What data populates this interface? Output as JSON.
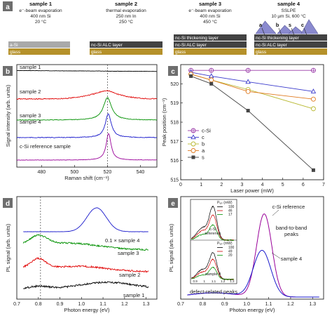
{
  "panel_a": {
    "letter": "a",
    "samples": [
      {
        "title": "sample 1",
        "lines": [
          "e⁻-beam evaporation",
          "400 nm Si",
          "20 °C"
        ],
        "layers": [
          {
            "text": "a-Si",
            "color": "#a9a9a9"
          },
          {
            "text": "glass",
            "color": "#b5912a"
          }
        ]
      },
      {
        "title": "sample 2",
        "lines": [
          "thermal evaporation",
          "250 nm In",
          "250 °C"
        ],
        "layers": [
          {
            "text": "nc-Si ALC layer",
            "color": "#424242"
          },
          {
            "text": "glass",
            "color": "#b5912a"
          }
        ]
      },
      {
        "title": "sample 3",
        "lines": [
          "e⁻-beam evaporation",
          "400 nm Si",
          "450 °C"
        ],
        "layers": [
          {
            "text": "nc-Si thickening layer",
            "color": "#424242"
          },
          {
            "text": "nc-Si ALC layer",
            "color": "#424242"
          },
          {
            "text": "glass",
            "color": "#b5912a"
          }
        ]
      },
      {
        "title": "sample 4",
        "lines": [
          "SSLPE",
          "10 µm Si, 600 °C"
        ],
        "layers": [
          {
            "text": "nc-Si thickening layer",
            "color": "#424242"
          },
          {
            "text": "nc-Si ALC layer",
            "color": "#424242"
          },
          {
            "text": "glass",
            "color": "#b5912a"
          }
        ],
        "pyramid_labels": [
          "a",
          "b",
          "s",
          "c"
        ]
      }
    ]
  },
  "chart_data": [
    {
      "panel": "b",
      "type": "line",
      "xlabel": "Raman shift (cm⁻¹)",
      "ylabel": "Signal intensity (arb. units)",
      "xlim": [
        465,
        550
      ],
      "xticks": [
        "480",
        "500",
        "520",
        "540"
      ],
      "dashed_line_x": 520,
      "series": [
        {
          "name": "sample 1",
          "color": "#000000"
        },
        {
          "name": "sample 2",
          "color": "#e00000"
        },
        {
          "name": "sample 3",
          "color": "#009000"
        },
        {
          "name": "sample 4",
          "color": "#1a1acc"
        },
        {
          "name": "c-Si reference sample",
          "color": "#990099"
        }
      ]
    },
    {
      "panel": "c",
      "type": "line",
      "xlabel": "Laser power (mW)",
      "ylabel": "Peak position (cm⁻¹)",
      "xlim": [
        0,
        7
      ],
      "ylim": [
        515,
        521
      ],
      "xticks": [
        "0",
        "1",
        "2",
        "3",
        "4",
        "5",
        "6",
        "7"
      ],
      "yticks": [
        "515",
        "516",
        "517",
        "518",
        "519",
        "520"
      ],
      "series": [
        {
          "name": "c-Si",
          "color": "#9a3aa8",
          "marker": "circle-plus",
          "x": [
            0.5,
            1.5,
            3.3,
            6.5
          ],
          "y": [
            520.7,
            520.7,
            520.7,
            520.7
          ]
        },
        {
          "name": "c",
          "color": "#3a3acc",
          "marker": "triangle",
          "x": [
            0.5,
            1.5,
            3.3,
            6.5
          ],
          "y": [
            520.6,
            520.4,
            520.1,
            519.6
          ]
        },
        {
          "name": "b",
          "color": "#b8b830",
          "marker": "circle",
          "x": [
            0.5,
            1.5,
            3.3,
            6.5
          ],
          "y": [
            520.5,
            520.2,
            519.7,
            518.7
          ]
        },
        {
          "name": "a",
          "color": "#e07a20",
          "marker": "circle",
          "x": [
            0.5,
            1.5,
            3.3,
            6.5
          ],
          "y": [
            520.5,
            520.2,
            519.6,
            519.2
          ]
        },
        {
          "name": "s",
          "color": "#444444",
          "marker": "square",
          "x": [
            0.5,
            1.5,
            3.3,
            6.5
          ],
          "y": [
            520.4,
            520.0,
            518.6,
            515.5
          ]
        }
      ]
    },
    {
      "panel": "d",
      "type": "line",
      "xlabel": "Photon energy (eV)",
      "ylabel": "PL signal (arb. units)",
      "xlim": [
        0.7,
        1.35
      ],
      "xticks": [
        "0.7",
        "0.8",
        "0.9",
        "1.0",
        "1.1",
        "1.2",
        "1.3"
      ],
      "dashed_line_x": 0.81,
      "series": [
        {
          "name": "0.1 × sample 4",
          "color": "#1a1acc"
        },
        {
          "name": "sample 3",
          "color": "#009000"
        },
        {
          "name": "sample 2",
          "color": "#e00000"
        },
        {
          "name": "sample 1",
          "color": "#000000"
        }
      ]
    },
    {
      "panel": "e",
      "type": "line",
      "xlabel": "Photon energy (eV)",
      "ylabel": "PL signal (arb. units)",
      "xlim": [
        0.7,
        1.35
      ],
      "xticks": [
        "0.7",
        "0.8",
        "0.9",
        "1.0",
        "1.1",
        "1.2",
        "1.3"
      ],
      "series": [
        {
          "name": "c-Si reference",
          "color": "#990099"
        },
        {
          "name": "sample 4",
          "color": "#1a1acc"
        }
      ],
      "annotations": [
        "band-to-band",
        "peaks",
        "defect-related peaks"
      ],
      "inset_top": {
        "legend_title": "Pₗₐₛ (mW)",
        "values": [
          "100",
          "46",
          "17"
        ],
        "label": [
          "c-Si",
          "reference"
        ],
        "colors": [
          "#000000",
          "#d00000",
          "#009000"
        ]
      },
      "inset_bottom": {
        "legend_title": "Pₗₐₛ (mW)",
        "values": [
          "100",
          "49",
          "20"
        ],
        "label": "sample 4",
        "colors": [
          "#000000",
          "#d00000",
          "#009000"
        ],
        "xticks": [
          "0.9",
          "1",
          "1.1",
          "1.2",
          "1.3"
        ]
      }
    }
  ],
  "panel_letters": [
    "a",
    "b",
    "c",
    "d",
    "e"
  ]
}
